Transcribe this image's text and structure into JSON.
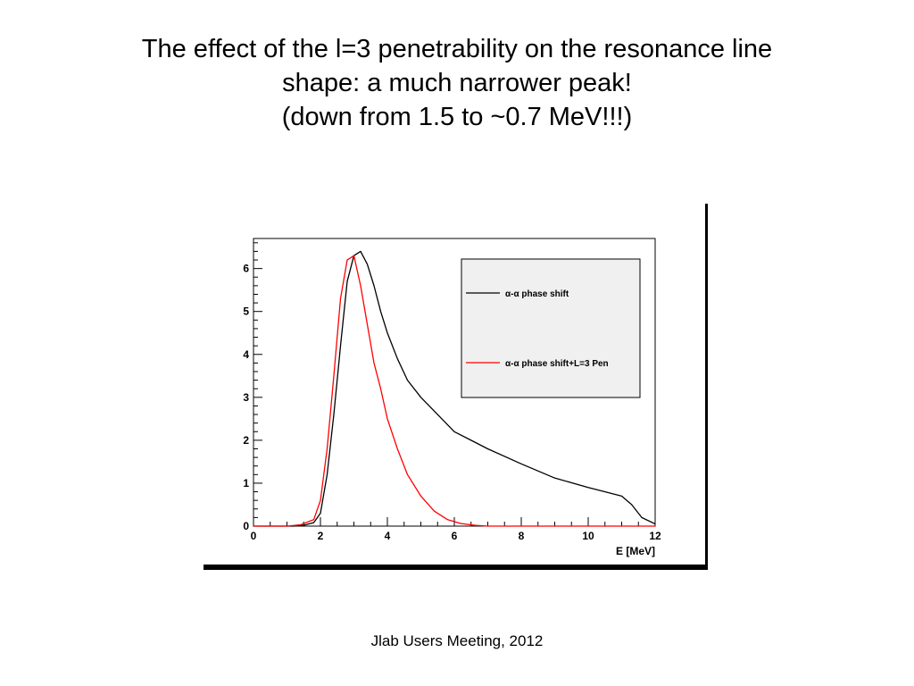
{
  "slide": {
    "title_lines": [
      "The effect of the l=3 penetrability on the resonance line",
      "shape:  a much narrower peak!",
      "(down from 1.5 to ~0.7 MeV!!!)"
    ],
    "footer": "Jlab Users Meeting, 2012"
  },
  "chart_data": {
    "type": "line",
    "title": "",
    "xlabel": "E [MeV]",
    "ylabel": "",
    "xlim": [
      0,
      12
    ],
    "ylim": [
      0,
      6.7
    ],
    "x_ticks": [
      0,
      2,
      4,
      6,
      8,
      10,
      12
    ],
    "y_ticks": [
      0,
      1,
      2,
      3,
      4,
      5,
      6
    ],
    "grid": false,
    "legend_position": "top-right",
    "colors": {
      "legend_background": "#f0f0f0",
      "axis": "#000000"
    },
    "series": [
      {
        "name": "α-α phase shift",
        "color": "#000000",
        "x": [
          0,
          1.2,
          1.5,
          1.8,
          2.0,
          2.2,
          2.4,
          2.6,
          2.8,
          3.0,
          3.2,
          3.4,
          3.6,
          3.8,
          4.0,
          4.3,
          4.6,
          5.0,
          5.5,
          6.0,
          6.5,
          7.0,
          8.0,
          9.0,
          10.0,
          11.0,
          11.3,
          11.6,
          12.0
        ],
        "y": [
          0,
          0,
          0.02,
          0.08,
          0.3,
          1.2,
          2.6,
          4.2,
          5.7,
          6.3,
          6.4,
          6.1,
          5.6,
          5.0,
          4.5,
          3.9,
          3.4,
          3.0,
          2.6,
          2.2,
          2.0,
          1.8,
          1.45,
          1.12,
          0.9,
          0.7,
          0.5,
          0.2,
          0.05
        ]
      },
      {
        "name": "α-α phase shift+L=3 Pen",
        "color": "#ff0000",
        "x": [
          0,
          1.0,
          1.4,
          1.8,
          2.0,
          2.2,
          2.4,
          2.6,
          2.8,
          3.0,
          3.2,
          3.4,
          3.6,
          3.8,
          4.0,
          4.3,
          4.6,
          5.0,
          5.4,
          5.8,
          6.2,
          6.6,
          7.0,
          8.0,
          12.0
        ],
        "y": [
          0,
          0,
          0.03,
          0.15,
          0.6,
          1.8,
          3.5,
          5.3,
          6.2,
          6.3,
          5.6,
          4.7,
          3.8,
          3.2,
          2.5,
          1.8,
          1.2,
          0.7,
          0.35,
          0.15,
          0.06,
          0.02,
          0,
          0,
          0
        ]
      }
    ]
  }
}
